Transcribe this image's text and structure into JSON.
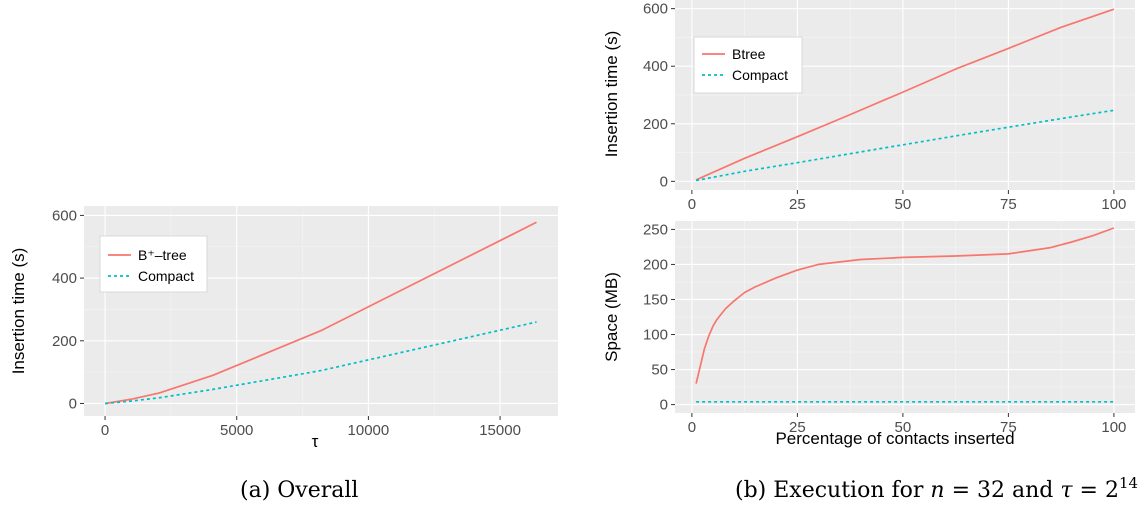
{
  "colors": {
    "series_a": "#f8766d",
    "series_b": "#00bfc4"
  },
  "captions": {
    "a": "(a) Overall",
    "b_prefix": "(b) Execution for",
    "b_n": "n",
    "b_eq1": " = 32 and ",
    "b_tau": "τ",
    "b_eq2": " = 2",
    "b_exp": "14"
  },
  "chart_data": [
    {
      "id": "overall",
      "type": "line",
      "title": "",
      "xlabel": "τ",
      "ylabel": "Insertion time (s)",
      "xlim": [
        -800,
        17200
      ],
      "ylim": [
        -40,
        630
      ],
      "xticks": [
        0,
        5000,
        10000,
        15000
      ],
      "xtick_labels": [
        "0",
        "5000",
        "10000",
        "15000"
      ],
      "yticks": [
        0,
        200,
        400,
        600
      ],
      "ytick_labels": [
        "0",
        "200",
        "400",
        "600"
      ],
      "legend": {
        "position": "top-left"
      },
      "series": [
        {
          "name": "B⁺–tree",
          "style": "solid",
          "x": [
            1,
            1024,
            2048,
            4096,
            8192,
            16384
          ],
          "y": [
            0,
            14,
            33,
            90,
            232,
            578
          ]
        },
        {
          "name": "Compact",
          "style": "dotted",
          "x": [
            1,
            1024,
            2048,
            4096,
            8192,
            16384
          ],
          "y": [
            0,
            8,
            18,
            45,
            105,
            260
          ]
        }
      ]
    },
    {
      "id": "execution-time",
      "type": "line",
      "title": "",
      "xlabel": "",
      "ylabel": "Insertion time (s)",
      "xlim": [
        -4,
        105
      ],
      "ylim": [
        -30,
        630
      ],
      "xticks": [
        0,
        25,
        50,
        75,
        100
      ],
      "xtick_labels": [
        "0",
        "25",
        "50",
        "75",
        "100"
      ],
      "yticks": [
        0,
        200,
        400,
        600
      ],
      "ytick_labels": [
        "0",
        "200",
        "400",
        "600"
      ],
      "legend": {
        "position": "top-left"
      },
      "series": [
        {
          "name": "Btree",
          "style": "solid",
          "x": [
            1,
            12.5,
            25,
            37.5,
            50,
            62.5,
            75,
            87.5,
            100
          ],
          "y": [
            5,
            80,
            155,
            232,
            310,
            390,
            462,
            535,
            598
          ]
        },
        {
          "name": "Compact",
          "style": "dotted",
          "x": [
            1,
            12.5,
            25,
            37.5,
            50,
            62.5,
            75,
            87.5,
            100
          ],
          "y": [
            3,
            35,
            65,
            96,
            127,
            158,
            188,
            218,
            247
          ]
        }
      ]
    },
    {
      "id": "execution-space",
      "type": "line",
      "title": "",
      "xlabel": "Percentage of contacts inserted",
      "ylabel": "Space (MB)",
      "xlim": [
        -4,
        105
      ],
      "ylim": [
        -12,
        262
      ],
      "xticks": [
        0,
        25,
        50,
        75,
        100
      ],
      "xtick_labels": [
        "0",
        "25",
        "50",
        "75",
        "100"
      ],
      "yticks": [
        0,
        50,
        100,
        150,
        200,
        250
      ],
      "ytick_labels": [
        "0",
        "50",
        "100",
        "150",
        "200",
        "250"
      ],
      "series": [
        {
          "name": "Btree",
          "style": "solid",
          "x": [
            1,
            2,
            3,
            4,
            5,
            6,
            8,
            10,
            12.5,
            15,
            20,
            25,
            30,
            40,
            50,
            62.5,
            75,
            85,
            90,
            95,
            100
          ],
          "y": [
            30,
            55,
            80,
            98,
            112,
            122,
            137,
            148,
            160,
            168,
            181,
            192,
            200,
            207,
            210,
            212,
            215,
            224,
            232,
            241,
            252
          ]
        },
        {
          "name": "Compact",
          "style": "dotted",
          "x": [
            1,
            25,
            50,
            75,
            100
          ],
          "y": [
            4,
            4,
            4,
            4,
            4
          ]
        }
      ]
    }
  ]
}
